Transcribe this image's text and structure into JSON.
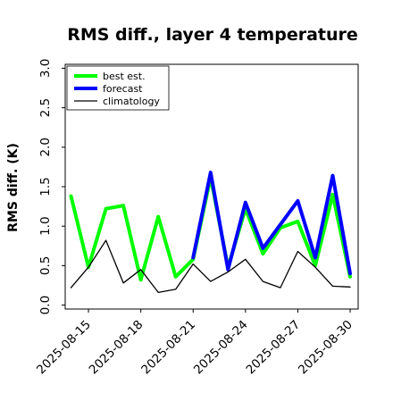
{
  "chart_data": {
    "type": "line",
    "title": "RMS diff., layer 4 temperature",
    "xlabel": "",
    "ylabel": "RMS diff. (K)",
    "ylim": [
      -0.05,
      3.05
    ],
    "yticks": [
      0.0,
      0.5,
      1.0,
      1.5,
      2.0,
      2.5,
      3.0
    ],
    "ytick_labels": [
      "0.0",
      "0.5",
      "1.0",
      "1.5",
      "2.0",
      "2.5",
      "3.0"
    ],
    "x_dates": [
      "2025-08-14",
      "2025-08-15",
      "2025-08-16",
      "2025-08-17",
      "2025-08-18",
      "2025-08-19",
      "2025-08-20",
      "2025-08-21",
      "2025-08-22",
      "2025-08-23",
      "2025-08-24",
      "2025-08-25",
      "2025-08-26",
      "2025-08-27",
      "2025-08-28",
      "2025-08-29",
      "2025-08-30"
    ],
    "xlim": [
      "2025-08-13T16:00",
      "2025-08-30T11:00"
    ],
    "xticks": [
      {
        "date": "2025-08-15",
        "label": "2025-08-15",
        "color": "#000000"
      },
      {
        "date": "2025-08-18",
        "label": "2025-08-18",
        "color": "#000000"
      },
      {
        "date": "2025-08-21",
        "label": "2025-08-21",
        "color": "#228b22"
      },
      {
        "date": "2025-08-24",
        "label": "2025-08-24",
        "color": "#000000"
      },
      {
        "date": "2025-08-27",
        "label": "2025-08-27",
        "color": "#000000"
      },
      {
        "date": "2025-08-30",
        "label": "2025-08-30",
        "color": "#000000"
      }
    ],
    "series": [
      {
        "name": "best est.",
        "color": "#00ff00",
        "values": [
          1.38,
          0.48,
          1.22,
          1.26,
          0.32,
          1.12,
          0.36,
          0.58,
          1.62,
          0.48,
          1.22,
          0.65,
          0.98,
          1.06,
          0.5,
          1.4,
          0.36
        ]
      },
      {
        "name": "forecast",
        "color": "#0000ff",
        "values": [
          null,
          null,
          null,
          null,
          null,
          null,
          null,
          0.6,
          1.68,
          0.45,
          1.3,
          0.72,
          1.02,
          1.32,
          0.6,
          1.64,
          0.4
        ]
      },
      {
        "name": "climatology",
        "color": "#000000",
        "values": [
          0.22,
          0.48,
          0.82,
          0.28,
          0.45,
          0.16,
          0.2,
          0.52,
          0.3,
          0.42,
          0.58,
          0.3,
          0.22,
          0.68,
          0.48,
          0.24,
          0.23
        ]
      }
    ],
    "legend": {
      "position": "top-left",
      "entries": [
        "best est.",
        "forecast",
        "climatology"
      ]
    },
    "grid": false
  }
}
